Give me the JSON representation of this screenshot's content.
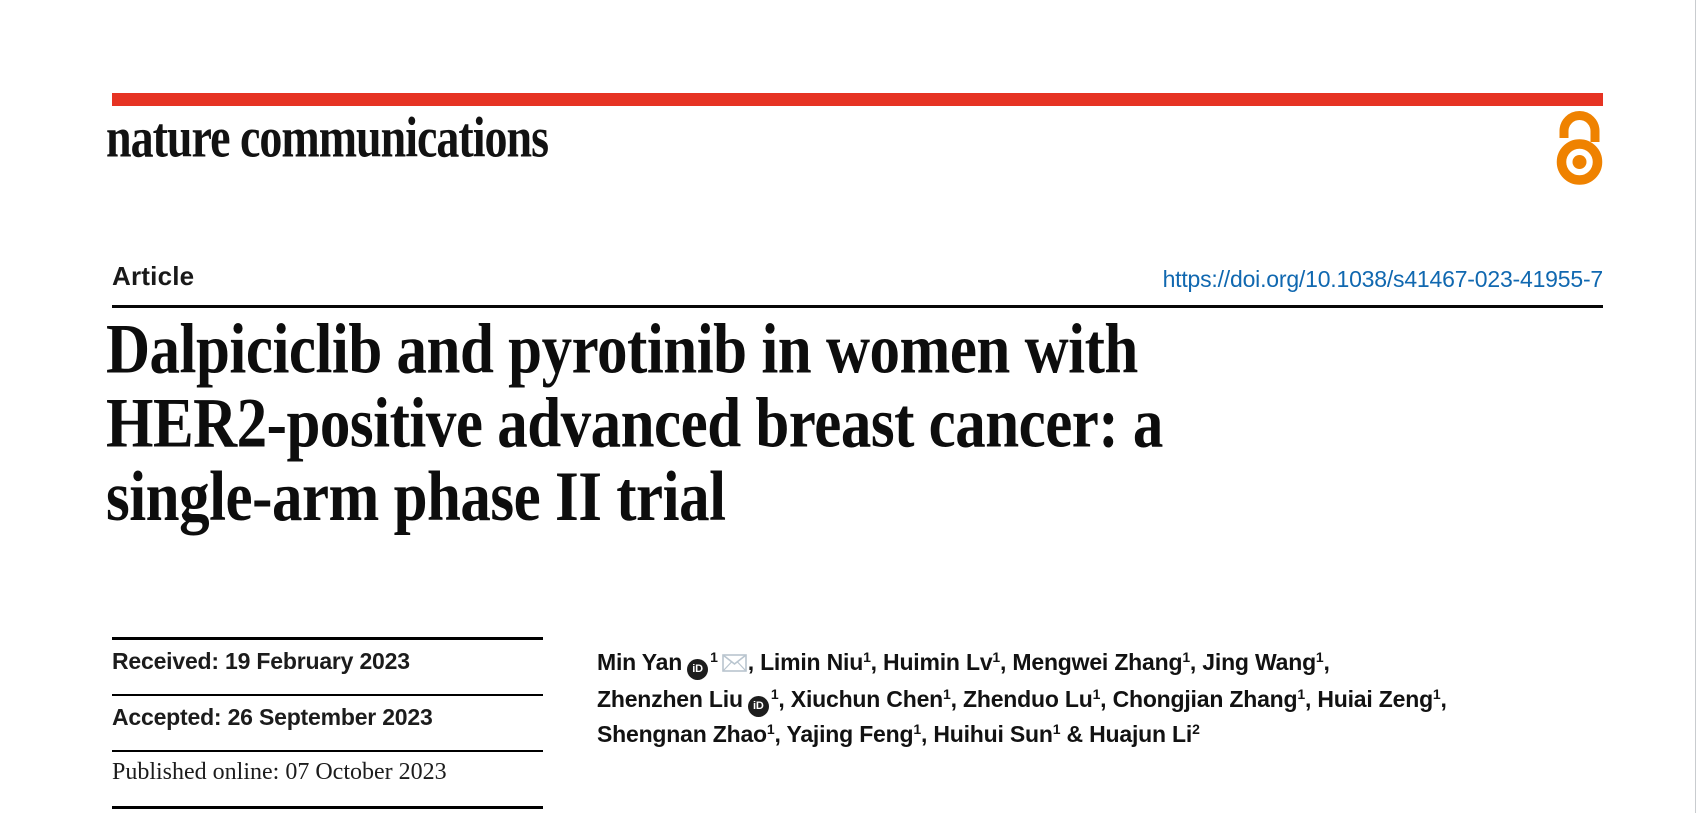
{
  "journal": {
    "name": "nature communications"
  },
  "colors": {
    "brand_red": "#e63323",
    "open_access_orange": "#ef8200",
    "link_blue": "#1068b0"
  },
  "icons": {
    "open_access": "open-access-lock-icon",
    "orcid_label": "iD",
    "email": "envelope-icon"
  },
  "article": {
    "label": "Article",
    "doi": "https://doi.org/10.1038/s41467-023-41955-7",
    "title_lines": [
      "Dalpiciclib and pyrotinib in women with",
      "HER2-positive advanced breast cancer: a",
      "single-arm phase II trial"
    ]
  },
  "history": {
    "received": "Received: 19 February 2023",
    "accepted": "Accepted: 26 September 2023",
    "published": "Published online: 07 October 2023"
  },
  "authors": {
    "lines": [
      [
        {
          "name": "Min Yan",
          "orcid": true,
          "sup": "1",
          "email": true,
          "sep": ", "
        },
        {
          "name": "Limin Niu",
          "sup": "1",
          "sep": ", "
        },
        {
          "name": "Huimin Lv",
          "sup": "1",
          "sep": ", "
        },
        {
          "name": "Mengwei Zhang",
          "sup": "1",
          "sep": ", "
        },
        {
          "name": "Jing Wang",
          "sup": "1",
          "sep": ","
        }
      ],
      [
        {
          "name": "Zhenzhen Liu",
          "orcid": true,
          "sup": "1",
          "sep": ", "
        },
        {
          "name": "Xiuchun Chen",
          "sup": "1",
          "sep": ", "
        },
        {
          "name": "Zhenduo Lu",
          "sup": "1",
          "sep": ", "
        },
        {
          "name": "Chongjian Zhang",
          "sup": "1",
          "sep": ", "
        },
        {
          "name": "Huiai Zeng",
          "sup": "1",
          "sep": ","
        }
      ],
      [
        {
          "name": "Shengnan Zhao",
          "sup": "1",
          "sep": ", "
        },
        {
          "name": "Yajing Feng",
          "sup": "1",
          "sep": ", "
        },
        {
          "name": "Huihui Sun",
          "sup": "1",
          "sep": " & "
        },
        {
          "name": "Huajun Li",
          "sup": "2",
          "sep": ""
        }
      ]
    ]
  }
}
